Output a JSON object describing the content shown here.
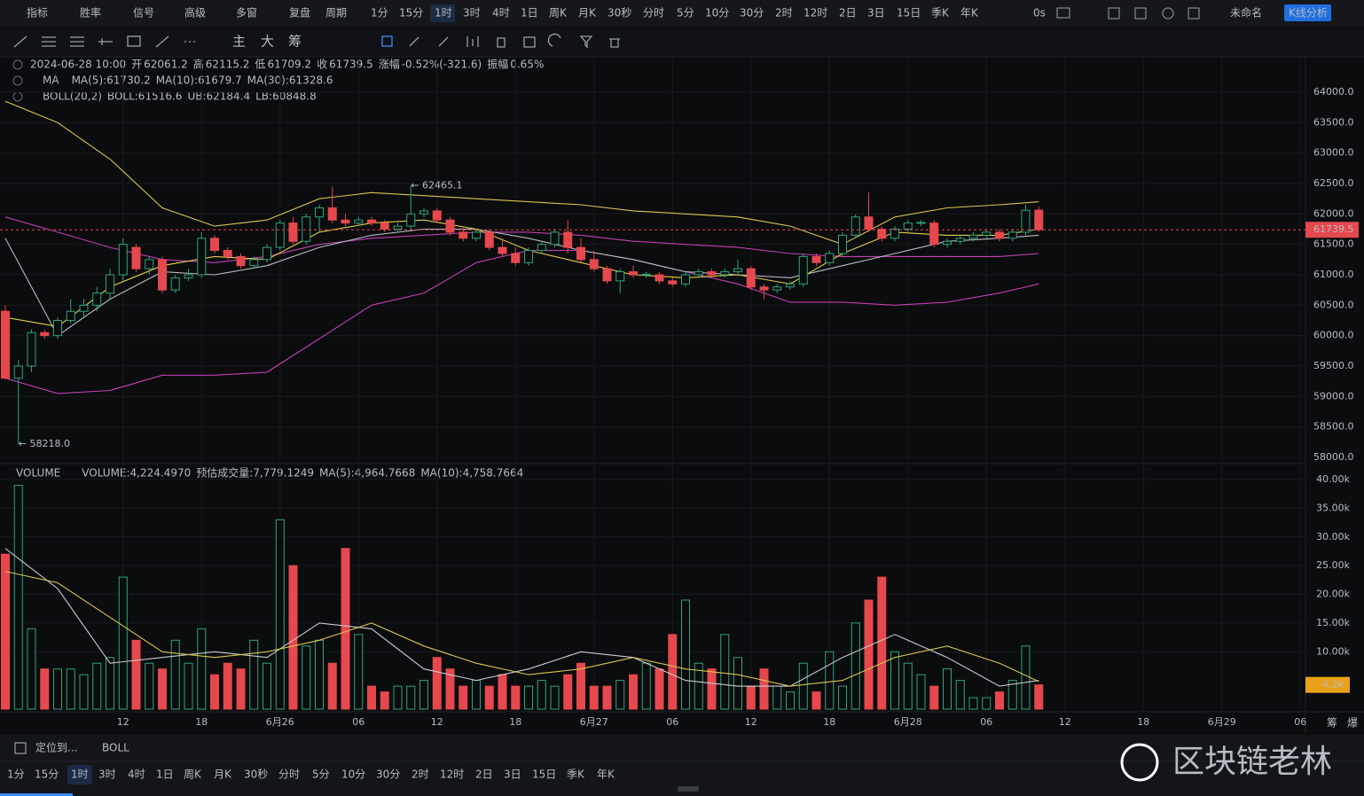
{
  "toolbar": {
    "left": [
      "指标",
      "胜率",
      "信号",
      "高级",
      "多窗",
      "复盘",
      "周期"
    ],
    "periods": [
      "1分",
      "15分",
      "1时",
      "3时",
      "4时",
      "1日",
      "周K",
      "月K",
      "30秒",
      "分时",
      "5分",
      "10分",
      "30分",
      "2时",
      "12时",
      "2日",
      "3日",
      "15日",
      "季K",
      "年K"
    ],
    "active_period": "1时",
    "timer": "0s",
    "layout_name": "未命名",
    "analysis_button": "K线分析"
  },
  "draw_toolbar": [
    "主",
    "大",
    "筹"
  ],
  "info": {
    "time": "2024-06-28 10:00",
    "items": [
      [
        "开",
        "62061.2"
      ],
      [
        "高",
        "62115.2"
      ],
      [
        "低",
        "61709.2"
      ],
      [
        "收",
        "61739.5"
      ],
      [
        "涨幅",
        "-0.52%(-321.6)"
      ],
      [
        "振幅",
        "0.65%"
      ]
    ]
  },
  "ma_legend": [
    "MA",
    "MA(5):61730.2",
    "MA(10):61679.7",
    "MA(30):61328.6"
  ],
  "boll_legend": [
    "BOLL(20,2)",
    "BOLL:61516.6",
    "UB:62184.4",
    "LB:60848.8"
  ],
  "volume_legend": [
    "VOLUME",
    "VOLUME:4,224.4970",
    "预估成交量:7,779.1249",
    "MA(5):4,964.7668",
    "MA(10):4,758.7664"
  ],
  "side_labels": [
    "筹",
    "爆"
  ],
  "bottom_bar": {
    "locate": "定位到...",
    "indicator": "BOLL",
    "periods": [
      "1分",
      "15分",
      "1时",
      "3时",
      "4时",
      "1日",
      "周K",
      "月K",
      "30秒",
      "分时",
      "5分",
      "10分",
      "30分",
      "2时",
      "12时",
      "2日",
      "3日",
      "15日",
      "季K",
      "年K"
    ],
    "active_period": "1时"
  },
  "watermark": "区块链老林",
  "chart_data": {
    "type": "candlestick",
    "up_color": "#2fa57a",
    "down_color": "#e5484d",
    "xlim": [
      -0.4,
      104.5
    ],
    "xticks": [
      {
        "value": 9,
        "label": "12"
      },
      {
        "value": 15,
        "label": "18"
      },
      {
        "value": 21,
        "label": "6月26"
      },
      {
        "value": 27,
        "label": "06"
      },
      {
        "value": 33,
        "label": "12"
      },
      {
        "value": 39,
        "label": "18"
      },
      {
        "value": 45,
        "label": "6月27"
      },
      {
        "value": 51,
        "label": "06"
      },
      {
        "value": 57,
        "label": "12"
      },
      {
        "value": 63,
        "label": "18"
      },
      {
        "value": 69,
        "label": "6月28"
      },
      {
        "value": 75,
        "label": "06"
      },
      {
        "value": 81,
        "label": "12"
      },
      {
        "value": 87,
        "label": "18"
      },
      {
        "value": 93,
        "label": "6月29"
      },
      {
        "value": 99,
        "label": "06"
      }
    ],
    "ylim": [
      57500,
      64500
    ],
    "yticks": [
      {
        "value": 58000,
        "label": "58000.0"
      },
      {
        "value": 58500,
        "label": "58500.0"
      },
      {
        "value": 59000,
        "label": "59000.0"
      },
      {
        "value": 59500,
        "label": "59500.0"
      },
      {
        "value": 60000,
        "label": "60000.0"
      },
      {
        "value": 60500,
        "label": "60500.0"
      },
      {
        "value": 61000,
        "label": "61000.0"
      },
      {
        "value": 61500,
        "label": "61500.0"
      },
      {
        "value": 62000,
        "label": "62000.0"
      },
      {
        "value": 62500,
        "label": "62500.0"
      },
      {
        "value": 63000,
        "label": "63000.0"
      },
      {
        "value": 63500,
        "label": "63500.0"
      },
      {
        "value": 64000,
        "label": "64000.0"
      }
    ],
    "candles": [
      [
        60400,
        60500,
        59300,
        59300
      ],
      [
        59300,
        59600,
        58218,
        59500
      ],
      [
        59500,
        60100,
        59400,
        60050
      ],
      [
        60050,
        60100,
        59950,
        60000
      ],
      [
        60000,
        60300,
        59950,
        60250
      ],
      [
        60250,
        60600,
        60200,
        60400
      ],
      [
        60400,
        60600,
        60300,
        60500
      ],
      [
        60500,
        60800,
        60400,
        60700
      ],
      [
        60700,
        61100,
        60600,
        61000
      ],
      [
        61000,
        61600,
        60900,
        61500
      ],
      [
        61450,
        61500,
        61050,
        61100
      ],
      [
        61100,
        61300,
        61000,
        61250
      ],
      [
        61250,
        61300,
        60700,
        60750
      ],
      [
        60750,
        61000,
        60700,
        60950
      ],
      [
        60950,
        61100,
        60900,
        61000
      ],
      [
        61000,
        61700,
        60950,
        61600
      ],
      [
        61600,
        61650,
        61350,
        61400
      ],
      [
        61400,
        61450,
        61250,
        61300
      ],
      [
        61300,
        61350,
        61100,
        61150
      ],
      [
        61150,
        61300,
        61100,
        61250
      ],
      [
        61250,
        61500,
        61200,
        61450
      ],
      [
        61450,
        61900,
        61400,
        61850
      ],
      [
        61850,
        61950,
        61500,
        61550
      ],
      [
        61550,
        62000,
        61500,
        61950
      ],
      [
        61950,
        62150,
        61700,
        62100
      ],
      [
        62100,
        62450,
        61850,
        61900
      ],
      [
        61900,
        62000,
        61800,
        61850
      ],
      [
        61850,
        61950,
        61800,
        61900
      ],
      [
        61900,
        61950,
        61800,
        61850
      ],
      [
        61850,
        61900,
        61700,
        61750
      ],
      [
        61750,
        61850,
        61700,
        61800
      ],
      [
        61800,
        62465.1,
        61750,
        62000
      ],
      [
        62000,
        62100,
        61950,
        62050
      ],
      [
        62050,
        62100,
        61850,
        61900
      ],
      [
        61900,
        61950,
        61650,
        61700
      ],
      [
        61700,
        61800,
        61550,
        61600
      ],
      [
        61600,
        61750,
        61550,
        61700
      ],
      [
        61700,
        61750,
        61400,
        61450
      ],
      [
        61450,
        61600,
        61300,
        61350
      ],
      [
        61350,
        61450,
        61150,
        61200
      ],
      [
        61200,
        61450,
        61150,
        61400
      ],
      [
        61400,
        61550,
        61350,
        61500
      ],
      [
        61500,
        61750,
        61450,
        61700
      ],
      [
        61700,
        61900,
        61350,
        61450
      ],
      [
        61450,
        61600,
        61200,
        61250
      ],
      [
        61250,
        61400,
        61050,
        61100
      ],
      [
        61100,
        61150,
        60850,
        60900
      ],
      [
        60900,
        61100,
        60700,
        61050
      ],
      [
        61050,
        61150,
        60950,
        61000
      ],
      [
        61000,
        61050,
        60950,
        61010
      ],
      [
        61000,
        61050,
        60850,
        60900
      ],
      [
        60900,
        60950,
        60800,
        60850
      ],
      [
        60850,
        61050,
        60800,
        61000
      ],
      [
        61000,
        61100,
        60950,
        61050
      ],
      [
        61050,
        61100,
        60950,
        61000
      ],
      [
        61000,
        61100,
        60950,
        61050
      ],
      [
        61050,
        61250,
        61000,
        61100
      ],
      [
        61100,
        61150,
        60750,
        60800
      ],
      [
        60800,
        60850,
        60600,
        60750
      ],
      [
        60750,
        60850,
        60700,
        60800
      ],
      [
        60800,
        60900,
        60750,
        60850
      ],
      [
        60850,
        61350,
        60800,
        61300
      ],
      [
        61300,
        61350,
        61150,
        61200
      ],
      [
        61200,
        61400,
        61150,
        61350
      ],
      [
        61350,
        61700,
        61300,
        61650
      ],
      [
        61650,
        62000,
        61600,
        61950
      ],
      [
        61950,
        62350,
        61700,
        61750
      ],
      [
        61750,
        61800,
        61550,
        61600
      ],
      [
        61600,
        61800,
        61550,
        61750
      ],
      [
        61750,
        61900,
        61700,
        61850
      ],
      [
        61850,
        61900,
        61800,
        61860
      ],
      [
        61850,
        61900,
        61450,
        61500
      ],
      [
        61500,
        61600,
        61450,
        61550
      ],
      [
        61550,
        61650,
        61500,
        61600
      ],
      [
        61600,
        61700,
        61550,
        61650
      ],
      [
        61650,
        61750,
        61600,
        61700
      ],
      [
        61700,
        61750,
        61550,
        61600
      ],
      [
        61600,
        61750,
        61550,
        61700
      ],
      [
        61700,
        62150,
        61650,
        62061
      ],
      [
        62061.2,
        62115.2,
        61709.2,
        61739.5
      ]
    ],
    "indicators": {
      "x": [
        0,
        4,
        8,
        12,
        16,
        20,
        24,
        28,
        32,
        36,
        40,
        44,
        48,
        52,
        56,
        60,
        64,
        68,
        72,
        76,
        79
      ],
      "series": [
        {
          "color": "#d9c552",
          "values": [
            63850,
            63500,
            62900,
            62100,
            61800,
            61900,
            62250,
            62350,
            62300,
            62250,
            62200,
            62150,
            62050,
            62000,
            61950,
            61800,
            61500,
            61950,
            62100,
            62150,
            62200
          ]
        },
        {
          "color": "#c23fb5",
          "values": [
            59300,
            59050,
            59100,
            59350,
            59350,
            59400,
            59950,
            60500,
            60700,
            61200,
            61400,
            61400,
            61250,
            61050,
            60850,
            60550,
            60550,
            60500,
            60550,
            60700,
            60850
          ]
        },
        {
          "color": "#c23fb5",
          "values": [
            61950,
            61700,
            61450,
            61250,
            61200,
            61300,
            61500,
            61600,
            61650,
            61700,
            61700,
            61650,
            61550,
            61500,
            61450,
            61350,
            61300,
            61300,
            61300,
            61300,
            61350
          ]
        },
        {
          "color": "#b9bcc2",
          "values": [
            61600,
            60000,
            60600,
            61050,
            61000,
            61150,
            61450,
            61650,
            61750,
            61750,
            61600,
            61400,
            61250,
            61050,
            61000,
            60950,
            61150,
            61350,
            61550,
            61600,
            61650
          ]
        },
        {
          "color": "#e4cf4a",
          "values": [
            60300,
            60150,
            60800,
            61150,
            61300,
            61250,
            61700,
            61850,
            61900,
            61750,
            61400,
            61200,
            61000,
            60950,
            61000,
            60850,
            61350,
            61700,
            61650,
            61650,
            61750
          ]
        }
      ]
    },
    "high_label": "← 62465.1",
    "low_label": "← 58218.0",
    "volumes": [
      27000,
      39000,
      14000,
      7000,
      7000,
      7000,
      6000,
      8000,
      9000,
      23000,
      12000,
      8000,
      7000,
      12000,
      8000,
      14000,
      6000,
      8000,
      7000,
      12000,
      8000,
      33000,
      25000,
      11000,
      12000,
      8000,
      28000,
      13000,
      4000,
      3000,
      4000,
      4000,
      5000,
      9000,
      7000,
      4000,
      5000,
      4000,
      6000,
      4000,
      4000,
      5000,
      4000,
      6000,
      8000,
      4000,
      4000,
      5000,
      6000,
      8000,
      7000,
      13000,
      19000,
      8000,
      7000,
      13000,
      9000,
      4000,
      7000,
      4000,
      3000,
      8000,
      3000,
      10000,
      4000,
      15000,
      19000,
      23000,
      10000,
      8000,
      6000,
      4000,
      7000,
      5000,
      2000,
      2000,
      3000,
      5000,
      11000,
      4224.497
    ],
    "volume_value_label": "4.2k",
    "vlim": [
      0,
      40000
    ],
    "vticks": [
      {
        "value": 10000,
        "label": "10.00k"
      },
      {
        "value": 15000,
        "label": "15.00k"
      },
      {
        "value": 20000,
        "label": "20.00k"
      },
      {
        "value": 25000,
        "label": "25.00k"
      },
      {
        "value": 30000,
        "label": "30.00k"
      },
      {
        "value": 35000,
        "label": "35.00k"
      },
      {
        "value": 40000,
        "label": "40.00k"
      }
    ],
    "volume_indicators": {
      "x": [
        0,
        4,
        8,
        12,
        16,
        20,
        24,
        28,
        32,
        36,
        40,
        44,
        48,
        52,
        56,
        60,
        64,
        68,
        72,
        76,
        79
      ],
      "series": [
        {
          "color": "#c9ccd2",
          "values": [
            28000,
            21000,
            8000,
            9000,
            10000,
            9000,
            15000,
            14000,
            7000,
            5000,
            7000,
            10000,
            9000,
            5000,
            4000,
            4000,
            9000,
            13000,
            9000,
            4000,
            5000
          ]
        },
        {
          "color": "#d9c552",
          "values": [
            24000,
            22000,
            16000,
            10000,
            9000,
            10000,
            12000,
            15000,
            11000,
            8000,
            6000,
            7000,
            9000,
            7000,
            6000,
            4000,
            5000,
            9000,
            11000,
            8000,
            4800
          ]
        }
      ]
    }
  }
}
